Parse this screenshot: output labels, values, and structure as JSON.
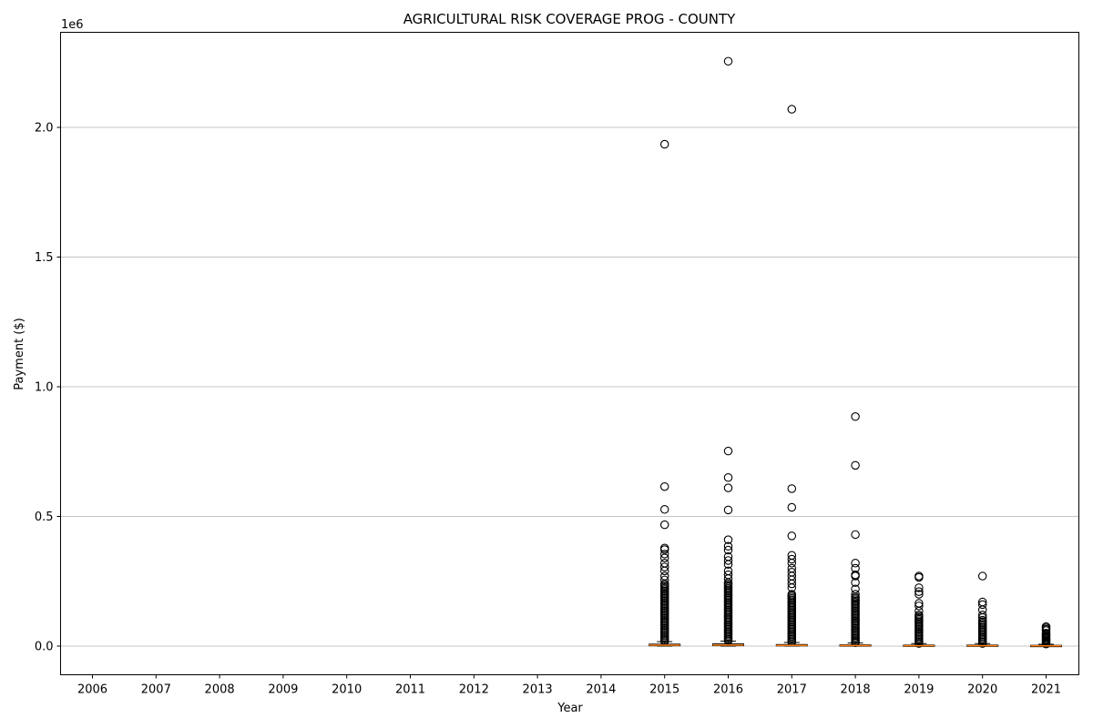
{
  "chart_data": {
    "type": "box",
    "title": "AGRICULTURAL RISK COVERAGE PROG - COUNTY",
    "xlabel": "Year",
    "ylabel": "Payment ($)",
    "y_offset_label": "1e6",
    "ylim": [
      -0.112,
      2.37
    ],
    "y_ticks": [
      0.0,
      0.5,
      1.0,
      1.5,
      2.0
    ],
    "y_tick_labels": [
      "0.0",
      "0.5",
      "1.0",
      "1.5",
      "2.0"
    ],
    "grid": "horizontal",
    "categories": [
      "2006",
      "2007",
      "2008",
      "2009",
      "2010",
      "2011",
      "2012",
      "2013",
      "2014",
      "2015",
      "2016",
      "2017",
      "2018",
      "2019",
      "2020",
      "2021"
    ],
    "boxes": [
      {
        "year": "2015",
        "q1": 0.0012,
        "median": 0.0035,
        "q3": 0.0075,
        "whisker_low": 0.0,
        "whisker_high": 0.0171,
        "dense_flier_range": [
          0.018,
          0.24
        ],
        "fliers": [
          1.935,
          0.615,
          0.527,
          0.468,
          0.378,
          0.372,
          0.355,
          0.34,
          0.32,
          0.305,
          0.29,
          0.27,
          0.255
        ]
      },
      {
        "year": "2016",
        "q1": 0.0015,
        "median": 0.004,
        "q3": 0.0085,
        "whisker_low": 0.0,
        "whisker_high": 0.019,
        "dense_flier_range": [
          0.02,
          0.245
        ],
        "fliers": [
          2.255,
          0.752,
          0.65,
          0.61,
          0.525,
          0.41,
          0.385,
          0.37,
          0.345,
          0.33,
          0.315,
          0.29,
          0.275,
          0.26
        ]
      },
      {
        "year": "2017",
        "q1": 0.0008,
        "median": 0.0025,
        "q3": 0.006,
        "whisker_low": 0.0,
        "whisker_high": 0.014,
        "dense_flier_range": [
          0.015,
          0.2
        ],
        "fliers": [
          2.07,
          0.607,
          0.535,
          0.425,
          0.35,
          0.335,
          0.32,
          0.3,
          0.285,
          0.27,
          0.255,
          0.24,
          0.225
        ]
      },
      {
        "year": "2018",
        "q1": 0.0006,
        "median": 0.002,
        "q3": 0.005,
        "whisker_low": 0.0,
        "whisker_high": 0.012,
        "dense_flier_range": [
          0.013,
          0.19
        ],
        "fliers": [
          0.885,
          0.697,
          0.43,
          0.32,
          0.3,
          0.275,
          0.27,
          0.245,
          0.22,
          0.2
        ]
      },
      {
        "year": "2019",
        "q1": 0.0005,
        "median": 0.0015,
        "q3": 0.004,
        "whisker_low": 0.0,
        "whisker_high": 0.0095,
        "dense_flier_range": [
          0.01,
          0.12
        ],
        "fliers": [
          0.27,
          0.265,
          0.225,
          0.21,
          0.2,
          0.165,
          0.155,
          0.135
        ]
      },
      {
        "year": "2020",
        "q1": 0.0005,
        "median": 0.0015,
        "q3": 0.004,
        "whisker_low": 0.0,
        "whisker_high": 0.0095,
        "dense_flier_range": [
          0.01,
          0.1
        ],
        "fliers": [
          0.27,
          0.17,
          0.16,
          0.14,
          0.12,
          0.11
        ]
      },
      {
        "year": "2021",
        "q1": 0.0003,
        "median": 0.001,
        "q3": 0.003,
        "whisker_low": 0.0,
        "whisker_high": 0.007,
        "dense_flier_range": [
          0.008,
          0.05
        ],
        "fliers": [
          0.075,
          0.07,
          0.065,
          0.06
        ]
      }
    ],
    "colors": {
      "median": "#ff7f0e",
      "grid": "#b0b0b0",
      "flier": "#000000"
    }
  }
}
